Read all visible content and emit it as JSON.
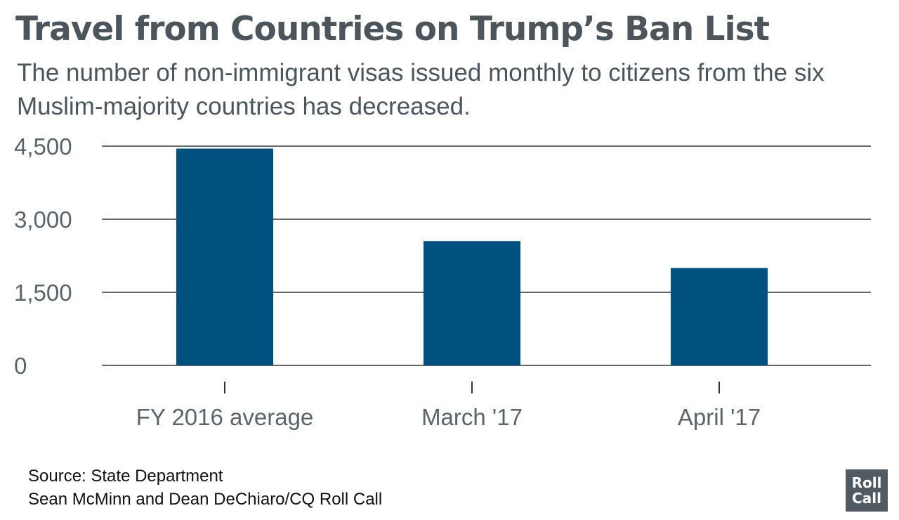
{
  "header": {
    "title": "Travel from Countries on Trump’s Ban List",
    "subtitle": "The number of non-immigrant visas issued monthly to citizens from the six Muslim-majority countries has decreased."
  },
  "footer": {
    "source": "Source: State Department",
    "credit": "Sean McMinn and Dean DeChiaro/CQ Roll Call"
  },
  "logo": {
    "line1": "Roll",
    "line2": "Call"
  },
  "colors": {
    "bar": "#005080",
    "gridline": "#333333",
    "text": "#4b555b"
  },
  "chart_data": {
    "type": "bar",
    "categories": [
      "FY 2016 average",
      "March '17",
      "April '17"
    ],
    "values": [
      4450,
      2550,
      2000
    ],
    "title": "Travel from Countries on Trump’s Ban List",
    "xlabel": "",
    "ylabel": "",
    "ylim": [
      0,
      4500
    ],
    "yticks": [
      0,
      1500,
      3000,
      4500
    ],
    "ytick_labels": [
      "0",
      "1,500",
      "3,000",
      "4,500"
    ],
    "grid": true,
    "legend": "none"
  }
}
